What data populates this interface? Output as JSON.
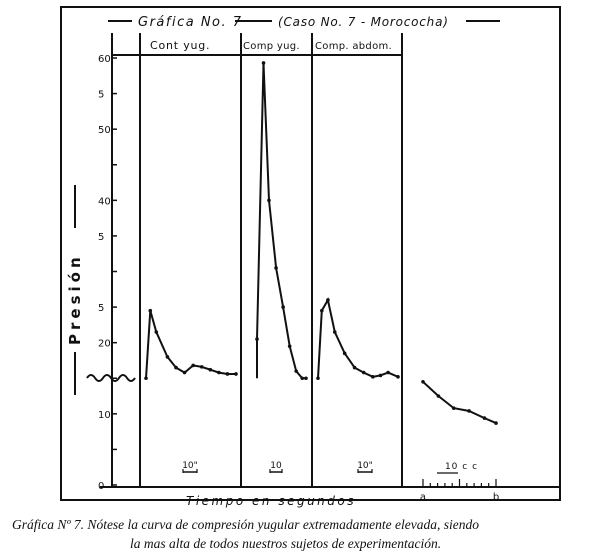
{
  "chart_data": {
    "type": "line",
    "title": "Gráfica No. 7",
    "subtitle": "(Caso No. 7 - Morococha)",
    "ylabel": "Presión",
    "xlabel": "Tiempo en segundos",
    "y_ticks": [
      "0",
      "5",
      "10",
      "15",
      "20",
      "25",
      "30",
      "35",
      "40",
      "45",
      "50",
      "55",
      "60"
    ],
    "y_tick_labels": [
      "0",
      "",
      "10",
      "",
      "20",
      "5",
      "",
      "5",
      "40",
      "",
      "50",
      "5",
      "60"
    ],
    "ylim": [
      0,
      60
    ],
    "panels": [
      {
        "name": "Cont yug.",
        "scale_label": "10\"",
        "points": [
          [
            0,
            15
          ],
          [
            0.5,
            24.5
          ],
          [
            1.2,
            21.5
          ],
          [
            2.5,
            18
          ],
          [
            3.5,
            16.5
          ],
          [
            4.5,
            15.8
          ],
          [
            5.5,
            16.8
          ],
          [
            6.5,
            16.6
          ],
          [
            7.5,
            16.2
          ],
          [
            8.5,
            15.8
          ],
          [
            9.5,
            15.6
          ],
          [
            10.5,
            15.6
          ]
        ]
      },
      {
        "name": "Comp yug.",
        "scale_label": "10",
        "points": [
          [
            0,
            20.5
          ],
          [
            1.2,
            59.3
          ],
          [
            2.2,
            40
          ],
          [
            3.5,
            30.5
          ],
          [
            4.8,
            25
          ],
          [
            6,
            19.5
          ],
          [
            7.2,
            16
          ],
          [
            8.3,
            15
          ],
          [
            9,
            15
          ]
        ]
      },
      {
        "name": "Comp. abdom.",
        "scale_label": "10\"",
        "points": [
          [
            0,
            15
          ],
          [
            0.5,
            24.5
          ],
          [
            1.3,
            26
          ],
          [
            2.2,
            21.5
          ],
          [
            3.5,
            18.5
          ],
          [
            4.8,
            16.5
          ],
          [
            6,
            15.8
          ],
          [
            7.2,
            15.2
          ],
          [
            8.2,
            15.4
          ],
          [
            9.2,
            15.8
          ],
          [
            10.5,
            15.2
          ]
        ]
      },
      {
        "name": "",
        "scale_label": "10 c c",
        "scale_ends": [
          "a",
          "b"
        ],
        "points": [
          [
            0,
            14.5
          ],
          [
            2,
            12.5
          ],
          [
            4,
            10.8
          ],
          [
            6,
            10.4
          ],
          [
            8,
            9.4
          ],
          [
            9.5,
            8.7
          ]
        ]
      }
    ],
    "baseline_wave_value": 15,
    "grid": false
  },
  "caption": {
    "line1": "Gráfica Nº 7.  Nótese la curva de compresión yugular extremadamente elevada, siendo",
    "line2": "la mas alta de todos nuestros sujetos de experimentación."
  }
}
